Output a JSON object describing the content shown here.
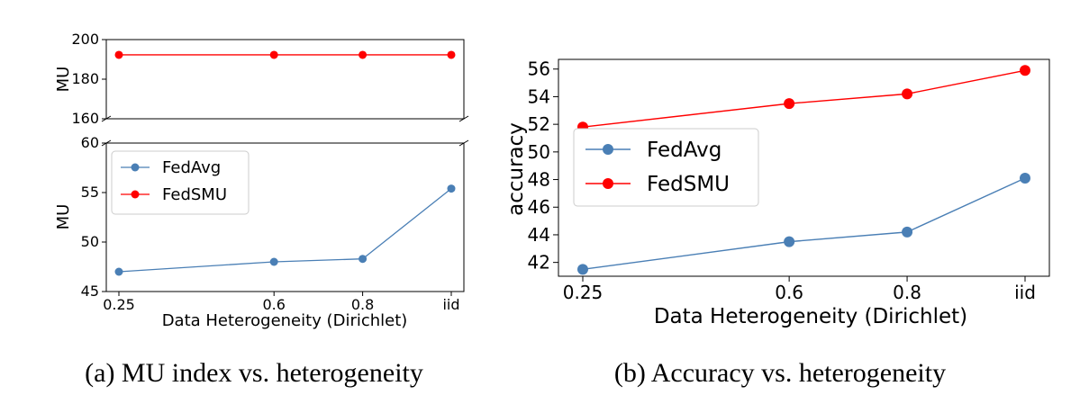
{
  "figure": {
    "caption_a": "(a) MU index vs. heterogeneity",
    "caption_b": "(b) Accuracy vs. heterogeneity"
  },
  "colors": {
    "fedavg": "#4a7fb5",
    "fedsmu": "#ff0000"
  },
  "chart_data": [
    {
      "type": "line",
      "panel": "a",
      "broken_axis": true,
      "xlabel": "Data Heterogeneity (Dirichlet)",
      "ylabel": "MU",
      "categories": [
        "0.25",
        "0.6",
        "0.8",
        "iid"
      ],
      "x": [
        0.25,
        0.6,
        0.8,
        1.0
      ],
      "upper": {
        "ylim": [
          160,
          200
        ],
        "yticks": [
          160,
          180,
          200
        ]
      },
      "lower": {
        "ylim": [
          45,
          60
        ],
        "yticks": [
          45,
          50,
          55,
          60
        ]
      },
      "legend": "upper-left",
      "series": [
        {
          "name": "FedAvg",
          "values": [
            47.0,
            48.0,
            48.3,
            55.4
          ]
        },
        {
          "name": "FedSMU",
          "values": [
            192.3,
            192.3,
            192.3,
            192.3
          ]
        }
      ]
    },
    {
      "type": "line",
      "panel": "b",
      "xlabel": "Data Heterogeneity (Dirichlet)",
      "ylabel": "accuracy",
      "categories": [
        "0.25",
        "0.6",
        "0.8",
        "iid"
      ],
      "x": [
        0.25,
        0.6,
        0.8,
        1.0
      ],
      "ylim": [
        41,
        56.7
      ],
      "yticks": [
        42,
        44,
        46,
        48,
        50,
        52,
        54,
        56
      ],
      "legend": "center-left",
      "series": [
        {
          "name": "FedAvg",
          "values": [
            41.5,
            43.5,
            44.2,
            48.1
          ]
        },
        {
          "name": "FedSMU",
          "values": [
            51.8,
            53.5,
            54.2,
            55.9
          ]
        }
      ]
    }
  ]
}
